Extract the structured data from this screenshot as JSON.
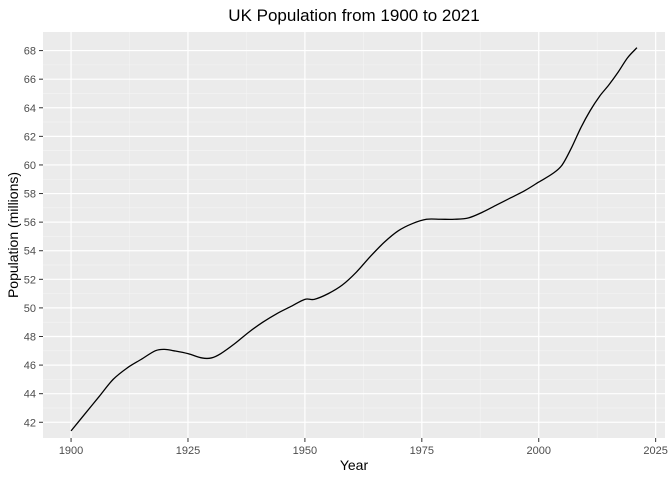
{
  "chart_data": {
    "type": "line",
    "title": "UK Population from 1900 to 2021",
    "xlabel": "Year",
    "ylabel": "Population (millions)",
    "xlim": [
      1894,
      2027
    ],
    "ylim": [
      40.9,
      69.3
    ],
    "x_ticks": [
      1900,
      1925,
      1950,
      1975,
      2000,
      2025
    ],
    "y_ticks": [
      42,
      44,
      46,
      48,
      50,
      52,
      54,
      56,
      58,
      60,
      62,
      64,
      66,
      68
    ],
    "grid": true,
    "legend": "none",
    "colors": {
      "panel_background": "#ebebeb",
      "grid_major": "#ffffff",
      "grid_minor": "#f5f5f5",
      "line": "#000000",
      "tick_text": "#4d4d4d",
      "axis_text": "#000000"
    },
    "series": [
      {
        "x": [
          1900,
          1903,
          1906,
          1909,
          1912,
          1915,
          1918,
          1920,
          1922,
          1925,
          1928,
          1930,
          1932,
          1935,
          1938,
          1941,
          1944,
          1947,
          1950,
          1952,
          1955,
          1958,
          1961,
          1964,
          1967,
          1970,
          1973,
          1976,
          1979,
          1982,
          1985,
          1988,
          1991,
          1994,
          1997,
          2000,
          2003,
          2005,
          2007,
          2009,
          2011,
          2013,
          2015,
          2017,
          2019,
          2021
        ],
        "y": [
          41.4,
          42.6,
          43.8,
          45.0,
          45.8,
          46.4,
          47.0,
          47.1,
          47.0,
          46.8,
          46.5,
          46.5,
          46.8,
          47.5,
          48.3,
          49.0,
          49.6,
          50.1,
          50.6,
          50.6,
          51.0,
          51.6,
          52.5,
          53.6,
          54.6,
          55.4,
          55.9,
          56.2,
          56.2,
          56.2,
          56.3,
          56.7,
          57.2,
          57.7,
          58.2,
          58.8,
          59.4,
          60.0,
          61.2,
          62.6,
          63.8,
          64.8,
          65.6,
          66.5,
          67.5,
          68.2
        ]
      }
    ]
  }
}
